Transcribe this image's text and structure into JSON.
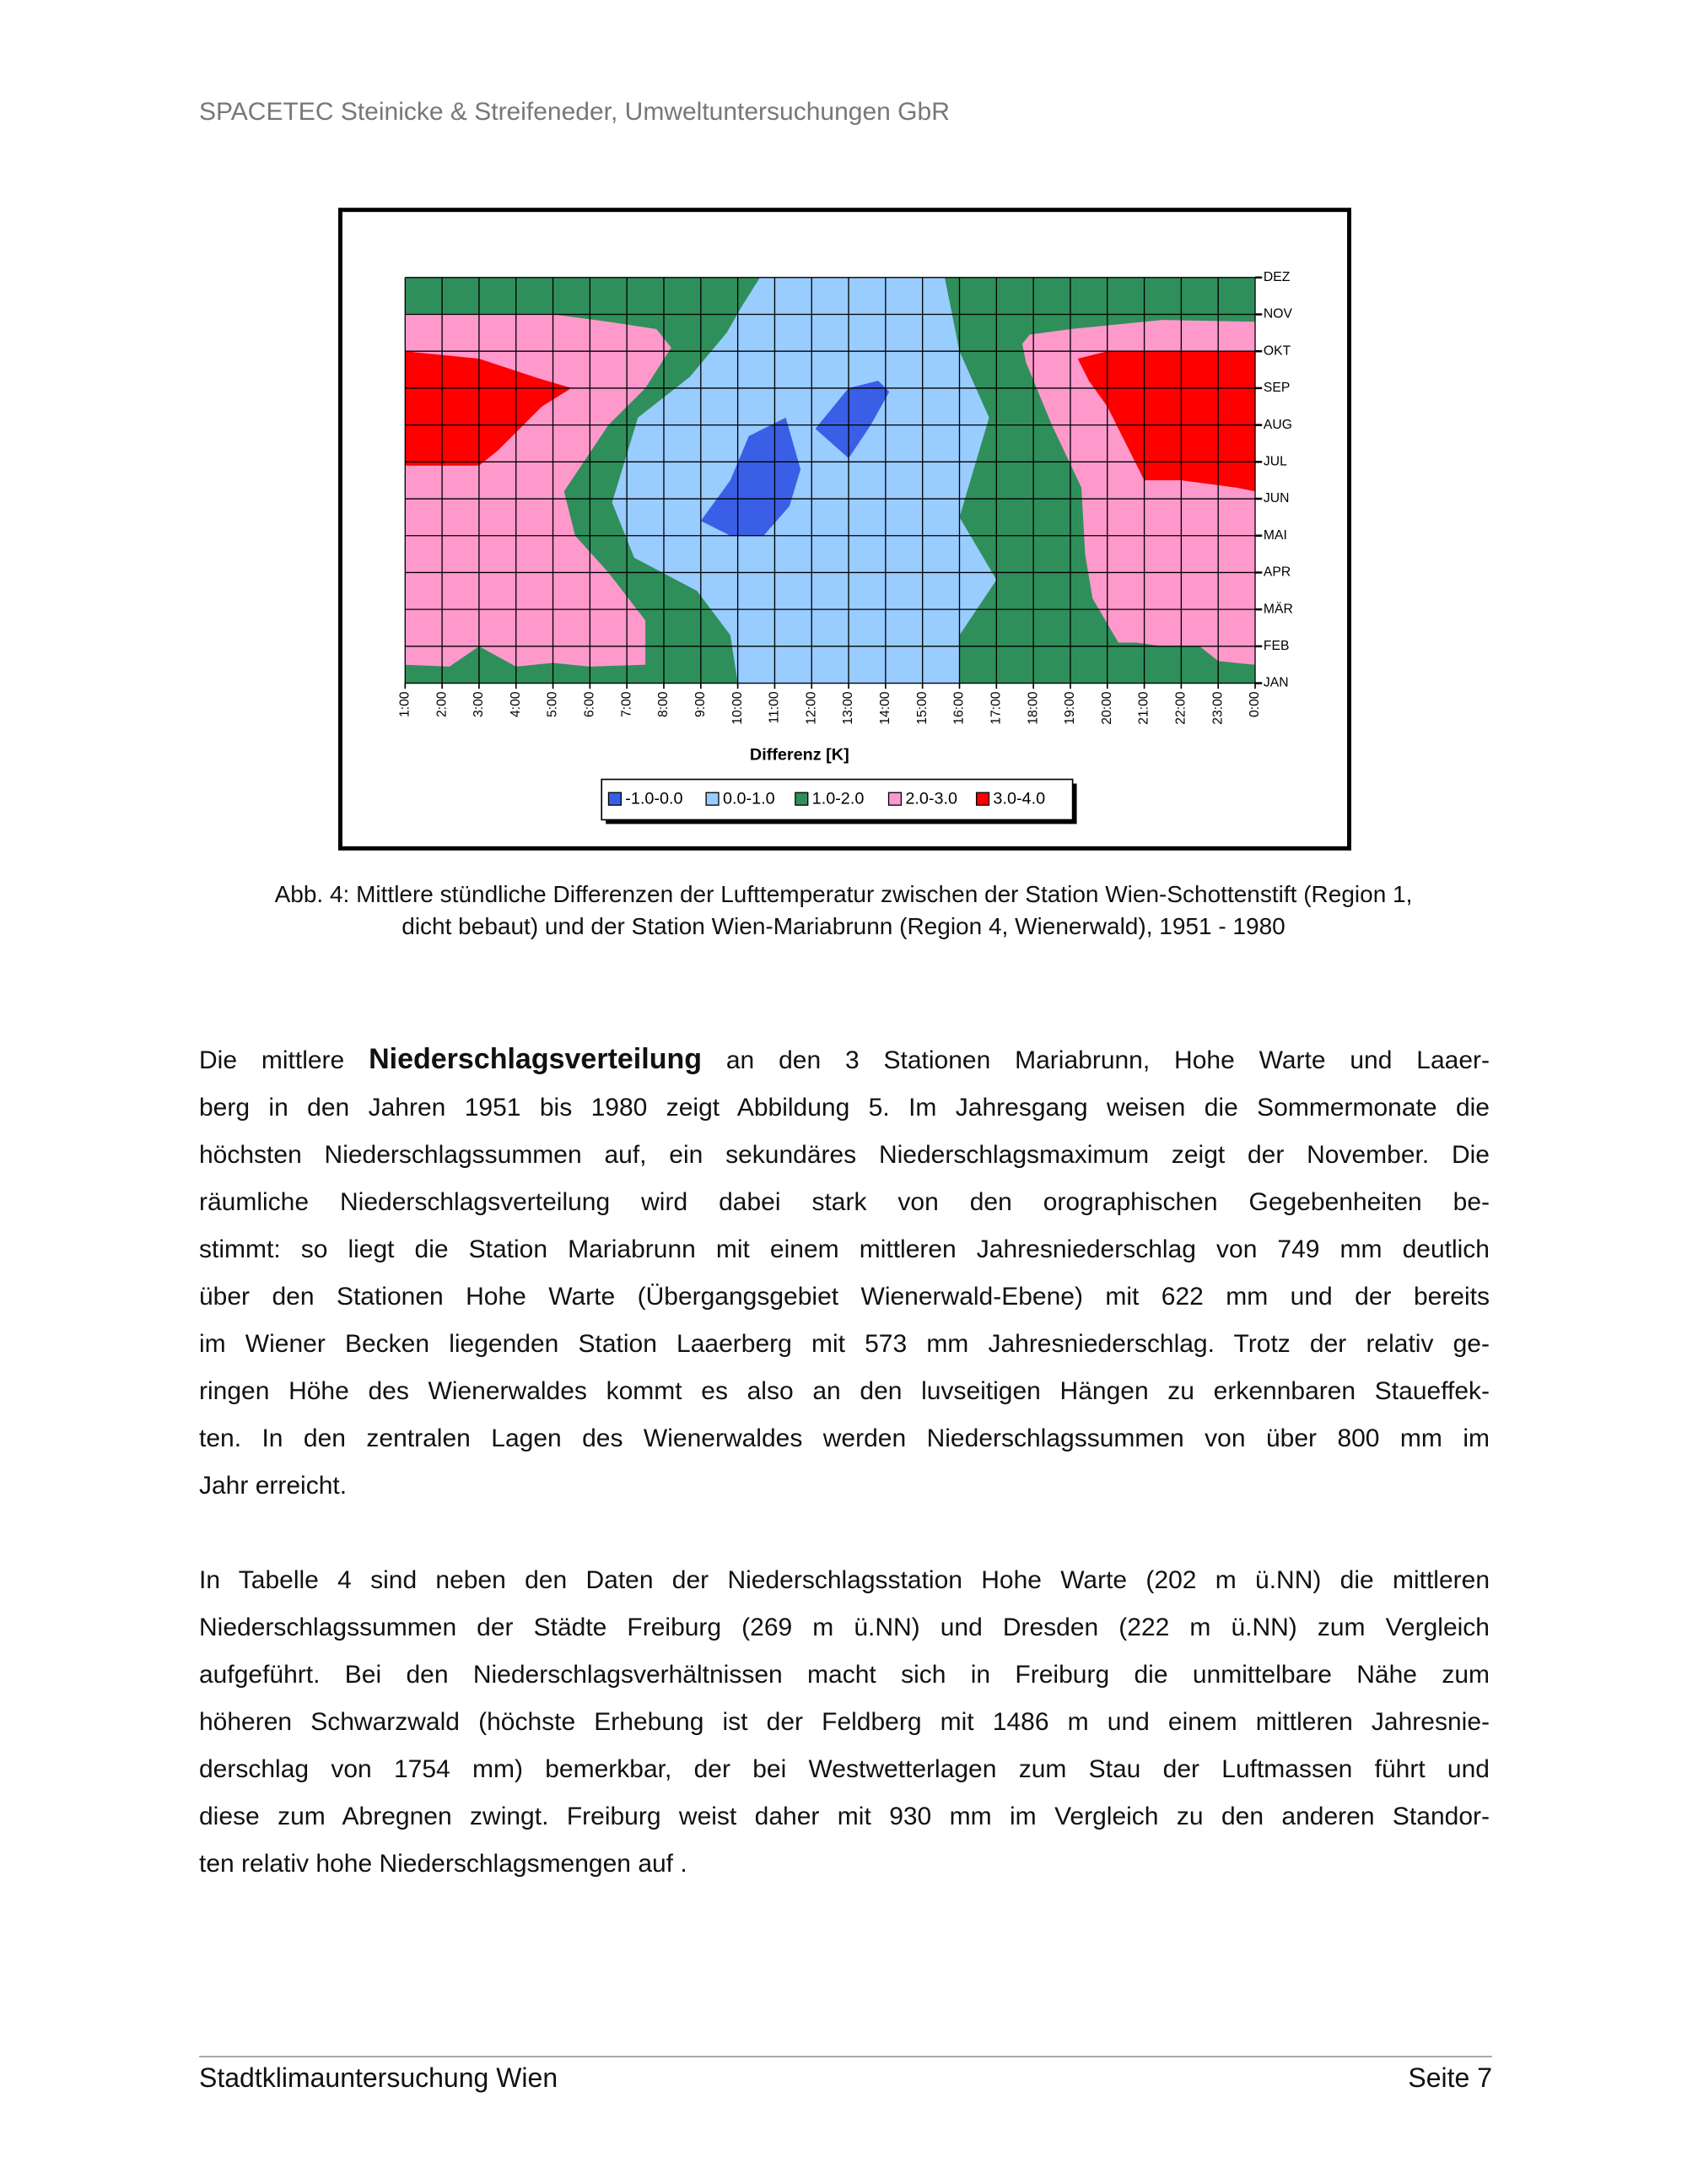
{
  "header": {
    "title": "SPACETEC Steinicke & Streifeneder, Umweltuntersuchungen GbR"
  },
  "chart_data": {
    "type": "contour",
    "x_label": "Differenz [K]",
    "categories": [
      "1:00",
      "2:00",
      "3:00",
      "4:00",
      "5:00",
      "6:00",
      "7:00",
      "8:00",
      "9:00",
      "10:00",
      "11:00",
      "12:00",
      "13:00",
      "14:00",
      "15:00",
      "16:00",
      "17:00",
      "18:00",
      "19:00",
      "20:00",
      "21:00",
      "22:00",
      "23:00",
      "0:00"
    ],
    "y_categories": [
      "JAN",
      "FEB",
      "MÄR",
      "APR",
      "MAI",
      "JUN",
      "JUL",
      "AUG",
      "SEP",
      "OKT",
      "NOV",
      "DEZ"
    ],
    "grid": true,
    "levels": [
      {
        "name": "-1.0-0.0",
        "color": "#3a5fe6"
      },
      {
        "name": "0.0-1.0",
        "color": "#99ccff"
      },
      {
        "name": "1.0-2.0",
        "color": "#2f8f5b"
      },
      {
        "name": "2.0-3.0",
        "color": "#ff99cc"
      },
      {
        "name": "3.0-4.0",
        "color": "#ff0000"
      }
    ]
  },
  "caption": {
    "lines": [
      "Abb. 4: Mittlere stündliche Differenzen der Lufttemperatur zwischen der Station Wien-Schottenstift (Region 1,",
      "dicht bebaut) und der Station Wien-Mariabrunn (Region 4, Wienerwald), 1951 - 1980"
    ]
  },
  "paragraphs": [
    {
      "lines": [
        [
          "Die mittlere ",
          "Niederschlagsverteilung",
          " an den 3 Stationen Mariabrunn, Hohe Warte und Laaer-"
        ],
        "berg in den Jahren 1951 bis 1980 zeigt Abbildung 5. Im Jahresgang weisen die Sommermonate die",
        "höchsten Niederschlagssummen auf, ein sekundäres Niederschlagsmaximum zeigt der November. Die",
        "räumliche Niederschlagsverteilung wird dabei stark von den orographischen Gegebenheiten be-",
        "stimmt: so liegt die Station Mariabrunn mit einem mittleren Jahresniederschlag von 749 mm deutlich",
        "über den Stationen Hohe Warte (Übergangsgebiet Wienerwald-Ebene) mit 622 mm und der bereits",
        "im Wiener Becken liegenden Station Laaerberg mit 573 mm Jahresniederschlag. Trotz der relativ ge-",
        "ringen Höhe des Wienerwaldes kommt es also an den luvseitigen Hängen zu erkennbaren Staueffek-",
        "ten. In den zentralen Lagen des Wienerwaldes werden Niederschlagssummen von über 800 mm im",
        "Jahr erreicht."
      ]
    },
    {
      "lines": [
        "In Tabelle 4 sind neben den Daten der Niederschlagsstation Hohe Warte (202 m ü.NN) die mittleren",
        "Niederschlagssummen der Städte Freiburg (269 m ü.NN) und Dresden (222 m ü.NN) zum Vergleich",
        "aufgeführt. Bei den Niederschlagsverhältnissen macht sich in Freiburg die unmittelbare Nähe zum",
        "höheren Schwarzwald (höchste Erhebung ist der Feldberg mit 1486 m und einem mittleren Jahresnie-",
        "derschlag von 1754 mm) bemerkbar, der bei Westwetterlagen zum Stau der Luftmassen führt und",
        "diese zum Abregnen zwingt. Freiburg weist daher mit 930 mm im Vergleich zu den anderen Standor-",
        "ten relativ hohe Niederschlagsmengen auf ."
      ]
    }
  ],
  "footer": {
    "left": "Stadtklimauntersuchung Wien",
    "right": "Seite 7"
  }
}
